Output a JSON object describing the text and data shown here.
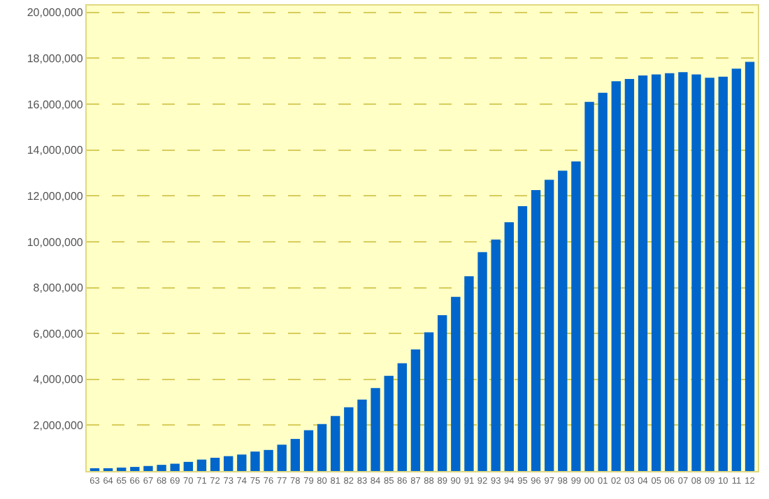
{
  "chart_data": {
    "type": "bar",
    "categories": [
      "63",
      "64",
      "65",
      "66",
      "67",
      "68",
      "69",
      "70",
      "71",
      "72",
      "73",
      "74",
      "75",
      "76",
      "77",
      "78",
      "79",
      "80",
      "81",
      "82",
      "83",
      "84",
      "85",
      "86",
      "87",
      "88",
      "89",
      "90",
      "91",
      "92",
      "93",
      "94",
      "95",
      "96",
      "97",
      "98",
      "99",
      "00",
      "01",
      "02",
      "03",
      "04",
      "05",
      "06",
      "07",
      "08",
      "09",
      "10",
      "11",
      "12"
    ],
    "series": [
      {
        "color": "#0066cc",
        "values": [
          100000,
          120000,
          150000,
          180000,
          220000,
          270000,
          320000,
          400000,
          500000,
          580000,
          650000,
          720000,
          850000,
          920000,
          1150000,
          1400000,
          1780000,
          2050000,
          2400000,
          2780000,
          3120000,
          3620000,
          4150000,
          4700000,
          5300000,
          6050000,
          6800000,
          7600000,
          8500000,
          9550000,
          10100000,
          10850000,
          11550000,
          12250000,
          12700000,
          13100000,
          13500000,
          16100000,
          16500000,
          17000000,
          17100000,
          17250000,
          17300000,
          17350000,
          17400000,
          17300000,
          17150000,
          17200000,
          17550000,
          17850000
        ]
      }
    ],
    "ylim": [
      0,
      20300000
    ],
    "yticks": [
      {
        "value": 2000000,
        "label": "2,000,000"
      },
      {
        "value": 4000000,
        "label": "4,000,000"
      },
      {
        "value": 6000000,
        "label": "6,000,000"
      },
      {
        "value": 8000000,
        "label": "8,000,000"
      },
      {
        "value": 10000000,
        "label": "10,000,000"
      },
      {
        "value": 12000000,
        "label": "12,000,000"
      },
      {
        "value": 14000000,
        "label": "14,000,000"
      },
      {
        "value": 16000000,
        "label": "16,000,000"
      },
      {
        "value": 18000000,
        "label": "18,000,000"
      },
      {
        "value": 20000000,
        "label": "20,000,000"
      }
    ],
    "grid": "y"
  }
}
